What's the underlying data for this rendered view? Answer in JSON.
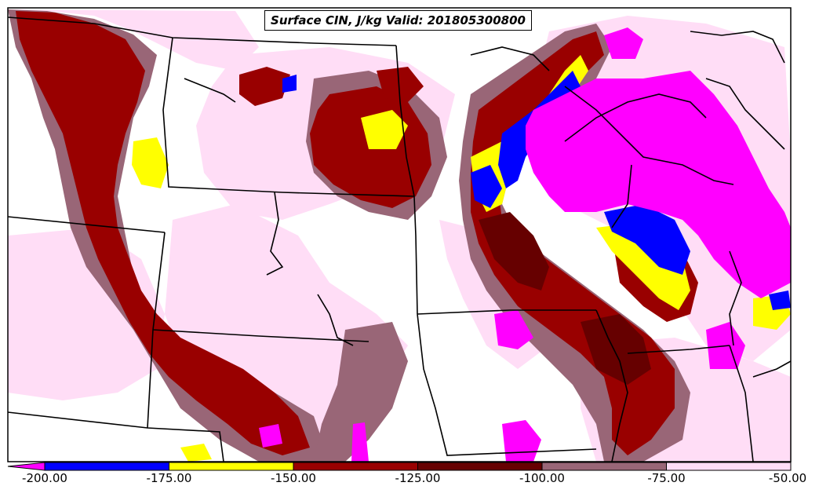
{
  "title": "Surface CIN, J/kg Valid: 201805300800",
  "colorbar": {
    "ticks": [
      "-200.00",
      "-175.00",
      "-150.00",
      "-125.00",
      "-100.00",
      "-75.00",
      "-50.00"
    ],
    "bins": [
      {
        "range": "<-200",
        "color": "#ff00ff"
      },
      {
        "range": "-200 to -175",
        "color": "#0000ff"
      },
      {
        "range": "-175 to -150",
        "color": "#ffff00"
      },
      {
        "range": "-150 to -125",
        "color": "#990000"
      },
      {
        "range": "-125 to -100",
        "color": "#660000"
      },
      {
        "range": "-100 to -75",
        "color": "#996677"
      },
      {
        "range": "-75 to -50",
        "color": "#ffddf6"
      }
    ]
  },
  "colors": {
    "very_strong": "#ff00ff",
    "strong": "#0000ff",
    "moderate_high": "#ffff00",
    "moderate": "#990000",
    "moderate_low": "#660000",
    "weak": "#996677",
    "very_weak": "#ffddf6",
    "boundaries": "#000000"
  }
}
